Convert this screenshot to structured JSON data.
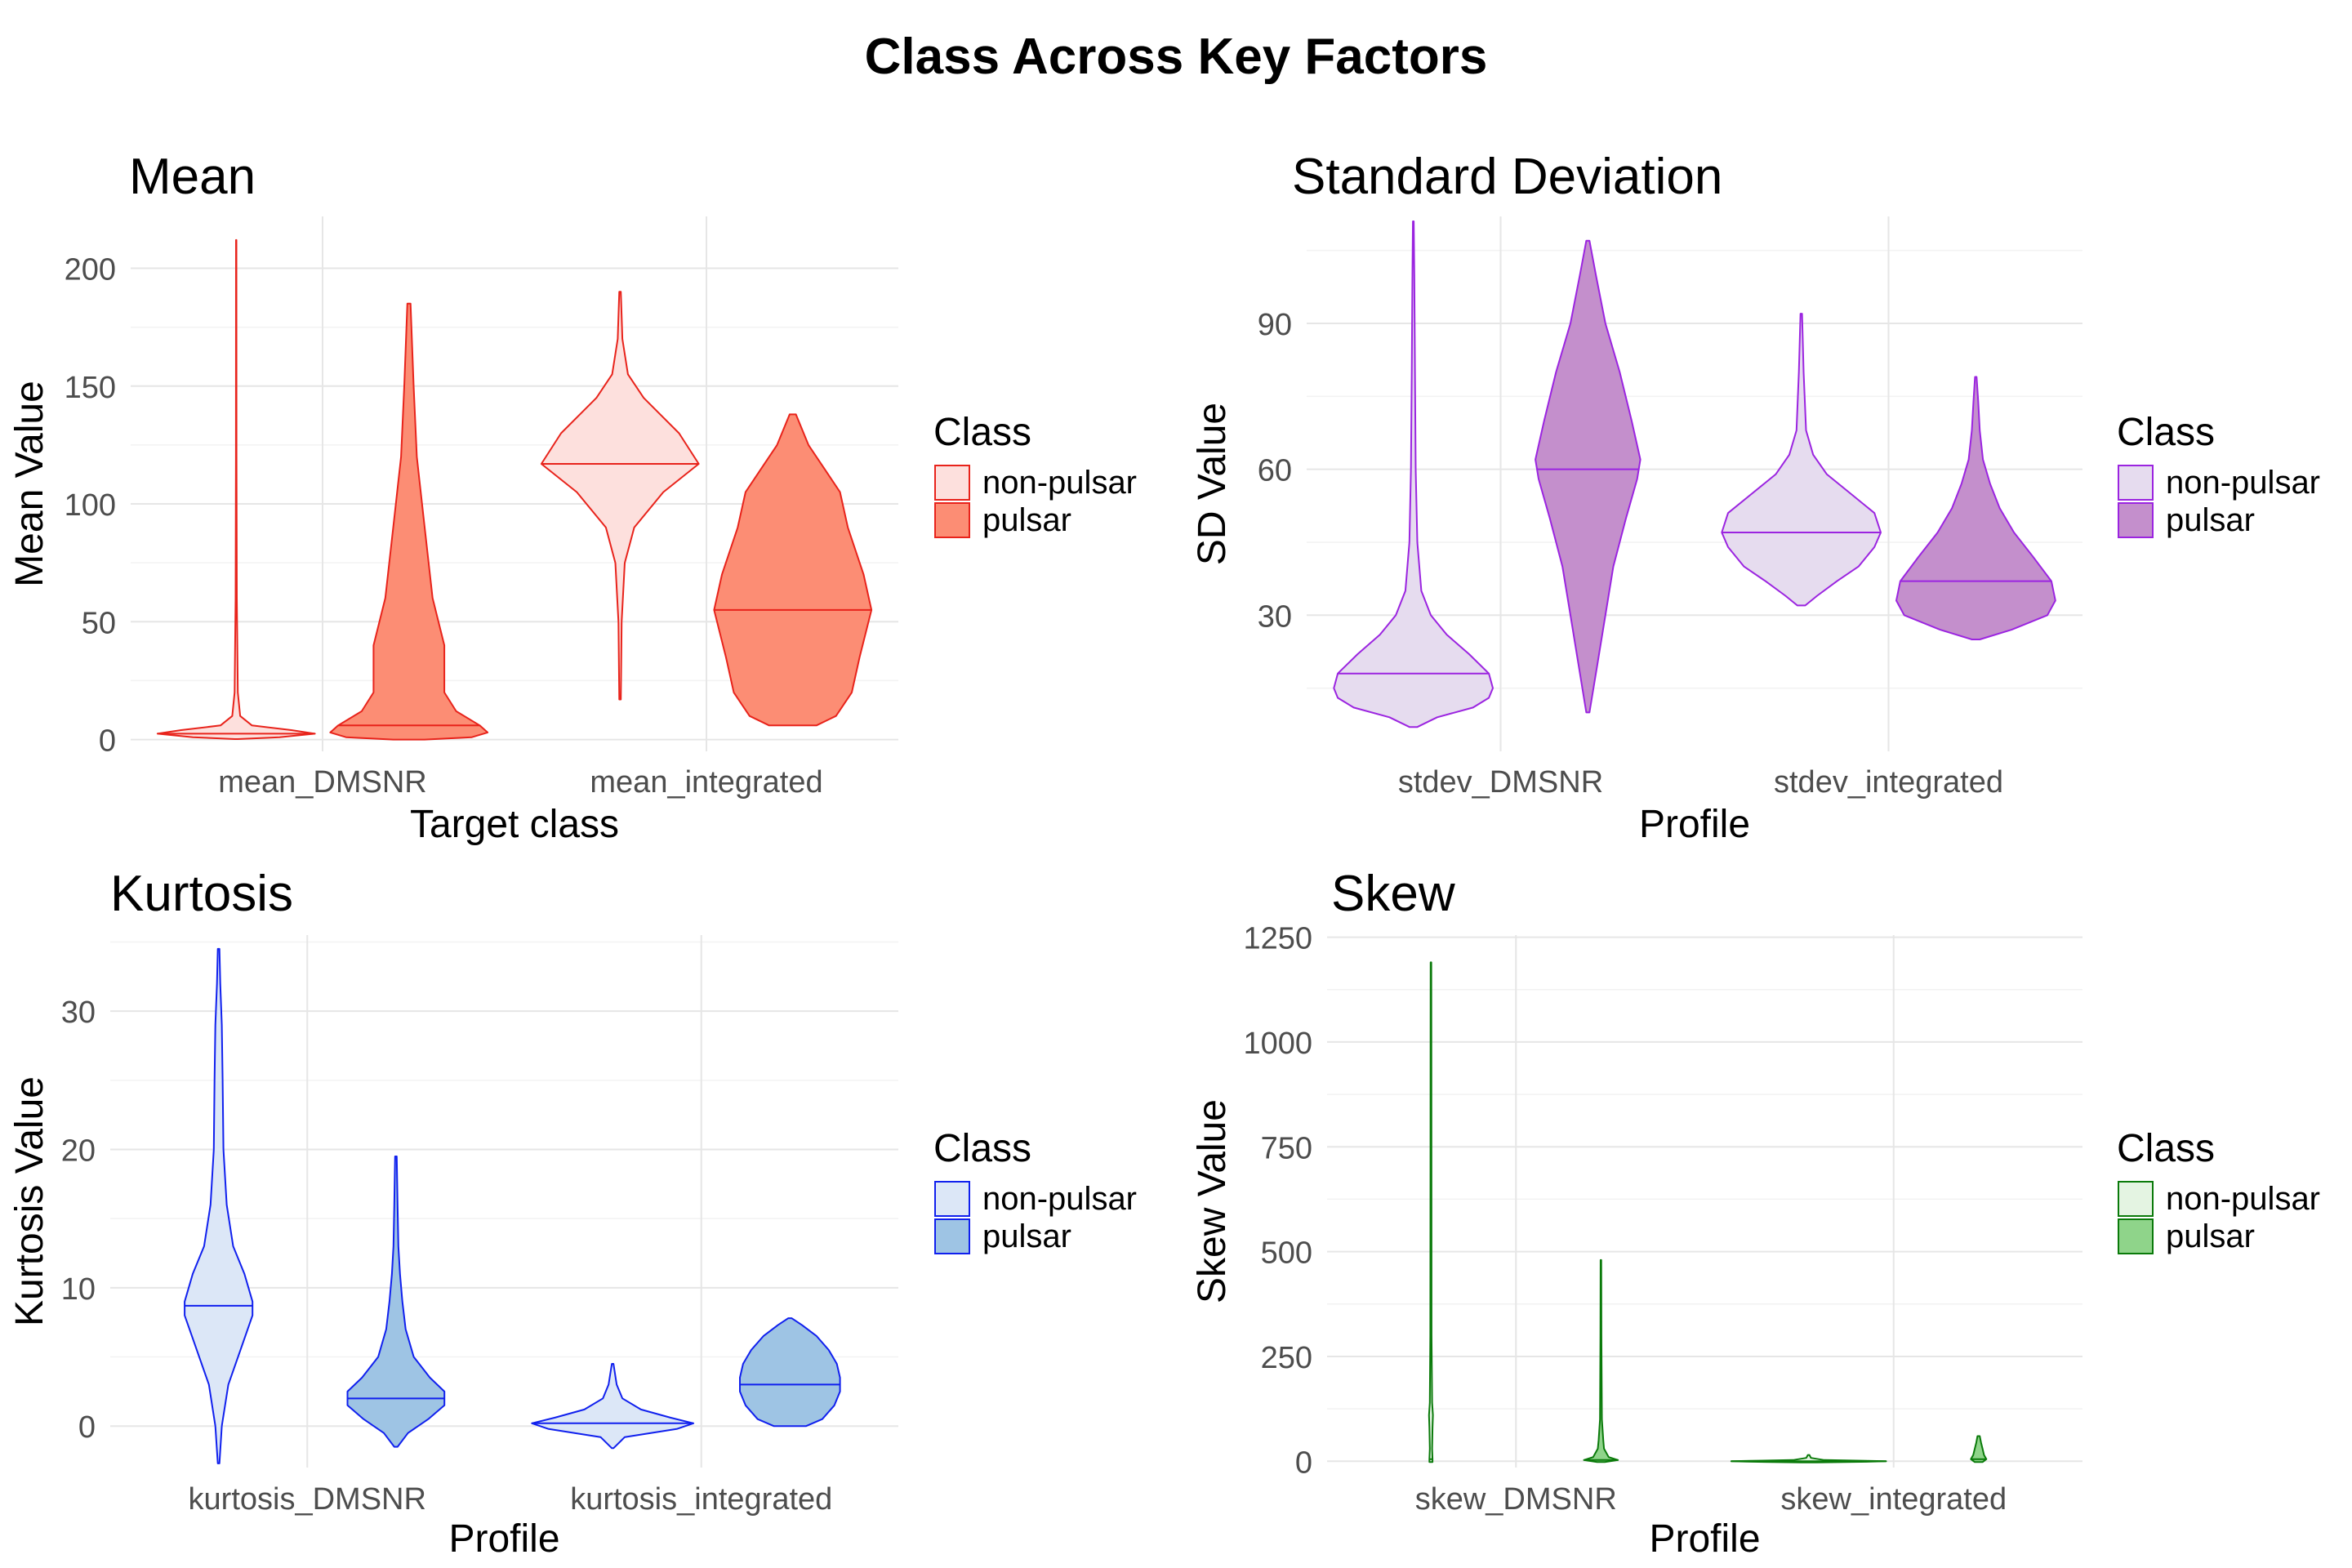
{
  "main_title": "Class Across Key Factors",
  "chart_data": [
    {
      "type": "violin",
      "title": "Mean",
      "xlabel": "Target class",
      "ylabel": "Mean Value",
      "categories": [
        "mean_DMSNR",
        "mean_integrated"
      ],
      "yticks": [
        0,
        50,
        100,
        150,
        200
      ],
      "ylim": [
        -5,
        222
      ],
      "grid": true,
      "legend": {
        "title": "Class",
        "position": "right",
        "entries": [
          "non-pulsar",
          "pulsar"
        ]
      },
      "colors": {
        "stroke": "#e8231b",
        "non-pulsar": "#fde0dd",
        "pulsar": "#fc8d74"
      },
      "series": [
        {
          "name": "non-pulsar",
          "violins": [
            {
              "median": 2.5,
              "shape": [
                [
                  0.2,
                  0.02
                ],
                [
                  1,
                  0.55
                ],
                [
                  2.5,
                  1.0
                ],
                [
                  4,
                  0.7
                ],
                [
                  6,
                  0.2
                ],
                [
                  10,
                  0.05
                ],
                [
                  20,
                  0.02
                ],
                [
                  60,
                  0.008
                ],
                [
                  120,
                  0.004
                ],
                [
                  212,
                  0.003
                ]
              ]
            },
            {
              "median": 117,
              "shape": [
                [
                  17,
                  0.01
                ],
                [
                  50,
                  0.02
                ],
                [
                  75,
                  0.06
                ],
                [
                  90,
                  0.18
                ],
                [
                  105,
                  0.55
                ],
                [
                  117,
                  1.0
                ],
                [
                  130,
                  0.75
                ],
                [
                  145,
                  0.3
                ],
                [
                  155,
                  0.1
                ],
                [
                  170,
                  0.03
                ],
                [
                  190,
                  0.01
                ]
              ]
            }
          ]
        },
        {
          "name": "pulsar",
          "violins": [
            {
              "median": 6,
              "shape": [
                [
                  0,
                  0.2
                ],
                [
                  1,
                  0.8
                ],
                [
                  3,
                  1.0
                ],
                [
                  6,
                  0.9
                ],
                [
                  12,
                  0.6
                ],
                [
                  20,
                  0.45
                ],
                [
                  40,
                  0.45
                ],
                [
                  60,
                  0.3
                ],
                [
                  90,
                  0.2
                ],
                [
                  120,
                  0.1
                ],
                [
                  150,
                  0.06
                ],
                [
                  185,
                  0.02
                ]
              ]
            },
            {
              "median": 55,
              "shape": [
                [
                  6,
                  0.3
                ],
                [
                  10,
                  0.55
                ],
                [
                  20,
                  0.75
                ],
                [
                  35,
                  0.85
                ],
                [
                  55,
                  1.0
                ],
                [
                  70,
                  0.9
                ],
                [
                  90,
                  0.7
                ],
                [
                  105,
                  0.6
                ],
                [
                  115,
                  0.4
                ],
                [
                  125,
                  0.2
                ],
                [
                  138,
                  0.04
                ]
              ]
            }
          ]
        }
      ]
    },
    {
      "type": "violin",
      "title": "Standard Deviation",
      "xlabel": "Profile",
      "ylabel": "SD Value",
      "categories": [
        "stdev_DMSNR",
        "stdev_integrated"
      ],
      "yticks": [
        30,
        60,
        90
      ],
      "ylim": [
        2,
        112
      ],
      "grid": true,
      "legend": {
        "title": "Class",
        "position": "right",
        "entries": [
          "non-pulsar",
          "pulsar"
        ]
      },
      "colors": {
        "stroke": "#9b24e0",
        "non-pulsar": "#e6dcef",
        "pulsar": "#c48fcc"
      },
      "series": [
        {
          "name": "non-pulsar",
          "violins": [
            {
              "median": 18,
              "shape": [
                [
                  7,
                  0.05
                ],
                [
                  9,
                  0.3
                ],
                [
                  11,
                  0.75
                ],
                [
                  13,
                  0.95
                ],
                [
                  15,
                  1.0
                ],
                [
                  18,
                  0.95
                ],
                [
                  22,
                  0.7
                ],
                [
                  26,
                  0.42
                ],
                [
                  30,
                  0.22
                ],
                [
                  35,
                  0.1
                ],
                [
                  45,
                  0.05
                ],
                [
                  60,
                  0.03
                ],
                [
                  80,
                  0.02
                ],
                [
                  100,
                  0.012
                ],
                [
                  111,
                  0.005
                ]
              ]
            },
            {
              "median": 47,
              "shape": [
                [
                  32,
                  0.05
                ],
                [
                  34,
                  0.2
                ],
                [
                  37,
                  0.45
                ],
                [
                  40,
                  0.72
                ],
                [
                  44,
                  0.92
                ],
                [
                  47,
                  1.0
                ],
                [
                  51,
                  0.92
                ],
                [
                  55,
                  0.62
                ],
                [
                  59,
                  0.32
                ],
                [
                  63,
                  0.15
                ],
                [
                  68,
                  0.06
                ],
                [
                  80,
                  0.03
                ],
                [
                  92,
                  0.01
                ]
              ]
            }
          ]
        },
        {
          "name": "pulsar",
          "violins": [
            {
              "median": 60,
              "shape": [
                [
                  10,
                  0.02
                ],
                [
                  20,
                  0.12
                ],
                [
                  30,
                  0.22
                ],
                [
                  40,
                  0.32
                ],
                [
                  50,
                  0.48
                ],
                [
                  58,
                  0.62
                ],
                [
                  62,
                  0.66
                ],
                [
                  70,
                  0.55
                ],
                [
                  80,
                  0.4
                ],
                [
                  90,
                  0.22
                ],
                [
                  100,
                  0.1
                ],
                [
                  107,
                  0.02
                ]
              ]
            },
            {
              "median": 37,
              "shape": [
                [
                  25,
                  0.05
                ],
                [
                  27,
                  0.45
                ],
                [
                  30,
                  0.9
                ],
                [
                  33,
                  1.0
                ],
                [
                  37,
                  0.95
                ],
                [
                  42,
                  0.72
                ],
                [
                  47,
                  0.48
                ],
                [
                  52,
                  0.3
                ],
                [
                  57,
                  0.18
                ],
                [
                  62,
                  0.09
                ],
                [
                  68,
                  0.05
                ],
                [
                  74,
                  0.03
                ],
                [
                  79,
                  0.01
                ]
              ]
            }
          ]
        }
      ]
    },
    {
      "type": "violin",
      "title": "Kurtosis",
      "xlabel": "Profile",
      "ylabel": "Kurtosis Value",
      "categories": [
        "kurtosis_DMSNR",
        "kurtosis_integrated"
      ],
      "yticks": [
        0,
        10,
        20,
        30
      ],
      "ylim": [
        -3,
        35.5
      ],
      "grid": true,
      "legend": {
        "title": "Class",
        "position": "right",
        "entries": [
          "non-pulsar",
          "pulsar"
        ]
      },
      "colors": {
        "stroke": "#1020ee",
        "non-pulsar": "#dce7f7",
        "pulsar": "#9ec4e4"
      },
      "series": [
        {
          "name": "non-pulsar",
          "violins": [
            {
              "median": 8.7,
              "shape": [
                [
                  -2.7,
                  0.01
                ],
                [
                  0,
                  0.04
                ],
                [
                  3,
                  0.12
                ],
                [
                  6,
                  0.3
                ],
                [
                  8,
                  0.42
                ],
                [
                  9,
                  0.42
                ],
                [
                  11,
                  0.32
                ],
                [
                  13,
                  0.18
                ],
                [
                  16,
                  0.1
                ],
                [
                  20,
                  0.06
                ],
                [
                  25,
                  0.05
                ],
                [
                  29,
                  0.04
                ],
                [
                  32,
                  0.02
                ],
                [
                  34.5,
                  0.01
                ]
              ]
            },
            {
              "median": 0.2,
              "shape": [
                [
                  -1.6,
                  0.01
                ],
                [
                  -0.8,
                  0.15
                ],
                [
                  -0.2,
                  0.8
                ],
                [
                  0.2,
                  1.0
                ],
                [
                  0.6,
                  0.72
                ],
                [
                  1.2,
                  0.35
                ],
                [
                  2,
                  0.12
                ],
                [
                  3,
                  0.05
                ],
                [
                  4.5,
                  0.01
                ]
              ]
            }
          ]
        },
        {
          "name": "pulsar",
          "violins": [
            {
              "median": 2,
              "shape": [
                [
                  -1.5,
                  0.02
                ],
                [
                  -0.5,
                  0.15
                ],
                [
                  0.5,
                  0.4
                ],
                [
                  1.5,
                  0.6
                ],
                [
                  2.5,
                  0.6
                ],
                [
                  3.5,
                  0.42
                ],
                [
                  5,
                  0.22
                ],
                [
                  7,
                  0.12
                ],
                [
                  9,
                  0.08
                ],
                [
                  11,
                  0.05
                ],
                [
                  13,
                  0.03
                ],
                [
                  16,
                  0.02
                ],
                [
                  19.5,
                  0.01
                ]
              ]
            },
            {
              "median": 3,
              "shape": [
                [
                  0,
                  0.2
                ],
                [
                  0.5,
                  0.4
                ],
                [
                  1.5,
                  0.55
                ],
                [
                  2.5,
                  0.62
                ],
                [
                  3.5,
                  0.62
                ],
                [
                  4.5,
                  0.58
                ],
                [
                  5.5,
                  0.48
                ],
                [
                  6.5,
                  0.33
                ],
                [
                  7.3,
                  0.15
                ],
                [
                  7.8,
                  0.02
                ]
              ]
            }
          ]
        }
      ]
    },
    {
      "type": "violin",
      "title": "Skew",
      "xlabel": "Profile",
      "ylabel": "Skew Value",
      "categories": [
        "skew_DMSNR",
        "skew_integrated"
      ],
      "yticks": [
        0,
        250,
        500,
        750,
        1000,
        1250
      ],
      "ylim": [
        -15,
        1255
      ],
      "grid": true,
      "legend": {
        "title": "Class",
        "position": "right",
        "entries": [
          "non-pulsar",
          "pulsar"
        ]
      },
      "colors": {
        "stroke": "#0a7a0a",
        "non-pulsar": "#e4f4e2",
        "pulsar": "#8fd48a"
      },
      "series": [
        {
          "name": "non-pulsar",
          "violins": [
            {
              "median": 5,
              "shape": [
                [
                  -2,
                  0.02
                ],
                [
                  5,
                  0.02
                ],
                [
                  30,
                  0.015
                ],
                [
                  80,
                  0.02
                ],
                [
                  110,
                  0.025
                ],
                [
                  140,
                  0.015
                ],
                [
                  300,
                  0.008
                ],
                [
                  700,
                  0.006
                ],
                [
                  1000,
                  0.005
                ],
                [
                  1190,
                  0.004
                ]
              ]
            },
            {
              "median": 0,
              "shape": [
                [
                  -3,
                  0.1
                ],
                [
                  -1,
                  0.8
                ],
                [
                  0,
                  1.0
                ],
                [
                  1,
                  0.75
                ],
                [
                  3,
                  0.2
                ],
                [
                  8,
                  0.03
                ],
                [
                  15,
                  0.01
                ]
              ]
            }
          ]
        },
        {
          "name": "pulsar",
          "violins": [
            {
              "median": 3,
              "shape": [
                [
                  -2,
                  0.05
                ],
                [
                  3,
                  0.22
                ],
                [
                  10,
                  0.1
                ],
                [
                  30,
                  0.04
                ],
                [
                  50,
                  0.03
                ],
                [
                  100,
                  0.012
                ],
                [
                  300,
                  0.006
                ],
                [
                  480,
                  0.004
                ]
              ]
            },
            {
              "median": 5,
              "shape": [
                [
                  -2,
                  0.05
                ],
                [
                  5,
                  0.1
                ],
                [
                  15,
                  0.07
                ],
                [
                  30,
                  0.05
                ],
                [
                  45,
                  0.03
                ],
                [
                  60,
                  0.015
                ]
              ]
            }
          ]
        }
      ]
    }
  ]
}
